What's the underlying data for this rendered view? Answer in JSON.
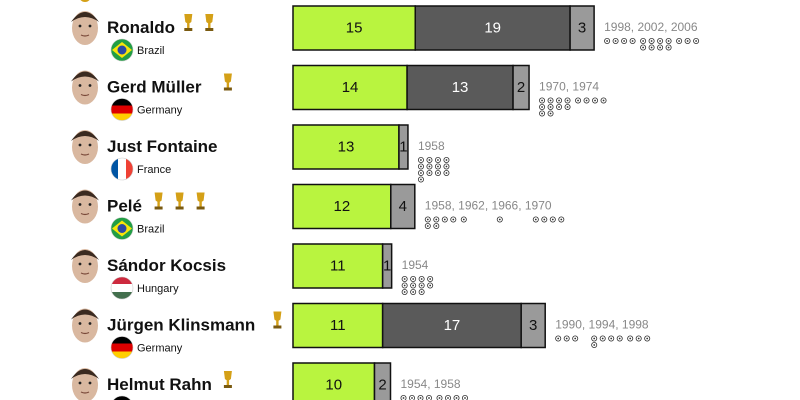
{
  "chart_data": {
    "type": "bar",
    "stacked": true,
    "orientation": "horizontal",
    "colors": {
      "segment1": "#b9f43f",
      "segment2": "#5a5a5a",
      "segment3": "#9a9a9a",
      "years_text": "#888888",
      "trophy": "#d4a017"
    },
    "players": [
      {
        "name": "Ronaldo",
        "country": "Brazil",
        "flag": "brazil",
        "trophies": 2,
        "values": [
          15,
          19,
          3
        ],
        "years": "1998, 2002, 2006",
        "year_goals": [
          4,
          8,
          3
        ]
      },
      {
        "name": "Gerd Müller",
        "country": "Germany",
        "flag": "germany",
        "trophies": 1,
        "values": [
          14,
          13,
          2
        ],
        "years": "1970, 1974",
        "year_goals": [
          10,
          4
        ]
      },
      {
        "name": "Just Fontaine",
        "country": "France",
        "flag": "france",
        "trophies": 0,
        "values": [
          13,
          1
        ],
        "years": "1958",
        "year_goals": [
          13
        ]
      },
      {
        "name": "Pelé",
        "country": "Brazil",
        "flag": "brazil",
        "trophies": 3,
        "values": [
          12,
          4
        ],
        "years": "1958, 1962, 1966, 1970",
        "year_goals": [
          6,
          1,
          1,
          4
        ]
      },
      {
        "name": "Sándor Kocsis",
        "country": "Hungary",
        "flag": "hungary",
        "trophies": 0,
        "values": [
          11,
          1
        ],
        "years": "1954",
        "year_goals": [
          11
        ]
      },
      {
        "name": "Jürgen Klinsmann",
        "country": "Germany",
        "flag": "germany",
        "trophies": 1,
        "values": [
          11,
          17,
          3
        ],
        "years": "1990, 1994, 1998",
        "year_goals": [
          3,
          5,
          3
        ]
      },
      {
        "name": "Helmut Rahn",
        "country": "Germany",
        "flag": "germany",
        "trophies": 1,
        "values": [
          10,
          2
        ],
        "years": "1954, 1958",
        "year_goals": [
          4,
          6
        ]
      }
    ]
  }
}
